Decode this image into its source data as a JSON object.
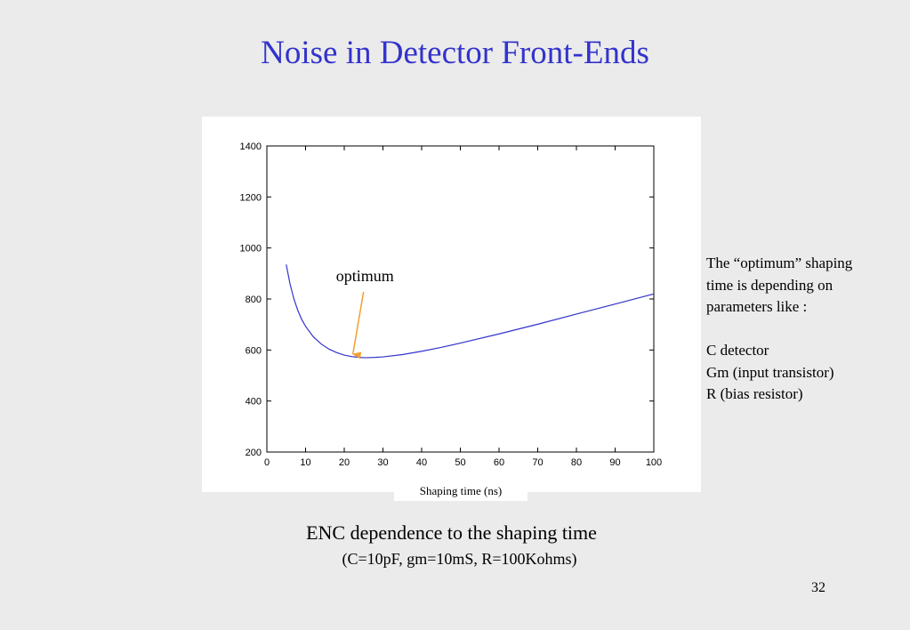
{
  "slide": {
    "title": "Noise in Detector Front-Ends",
    "page_number": "32"
  },
  "caption": {
    "main": "ENC dependence to the shaping time",
    "sub": "(C=10pF, gm=10mS, R=100Kohms)"
  },
  "side_note": {
    "lines": [
      "The “optimum” shaping",
      "time  is depending on",
      "parameters like :",
      "",
      "C detector",
      "Gm (input transistor)",
      "R (bias resistor)"
    ]
  },
  "colors": {
    "title": "#3333cc",
    "curve": "#3333cc",
    "arrow": "#f0a030"
  },
  "chart_data": {
    "type": "line",
    "title": "",
    "xlabel": "Shaping time (ns)",
    "ylabel": "",
    "xlim": [
      0,
      100
    ],
    "ylim": [
      200,
      1400
    ],
    "xticks": [
      0,
      10,
      20,
      30,
      40,
      50,
      60,
      70,
      80,
      90,
      100
    ],
    "yticks": [
      200,
      400,
      600,
      800,
      1000,
      1200,
      1400
    ],
    "grid": false,
    "series": [
      {
        "x": [
          5,
          6,
          7,
          8,
          9,
          10,
          12,
          14,
          16,
          18,
          20,
          22,
          24,
          25,
          26,
          28,
          30,
          35,
          40,
          45,
          50,
          60,
          70,
          80,
          90,
          100
        ],
        "y": [
          935,
          858,
          800,
          755,
          720,
          693,
          652,
          624,
          604,
          590,
          580,
          574,
          571,
          570,
          570,
          571,
          573,
          582,
          595,
          610,
          627,
          663,
          701,
          741,
          780,
          820
        ]
      }
    ],
    "annotations": [
      {
        "text": "optimum",
        "x": 22,
        "y": 577
      }
    ]
  }
}
